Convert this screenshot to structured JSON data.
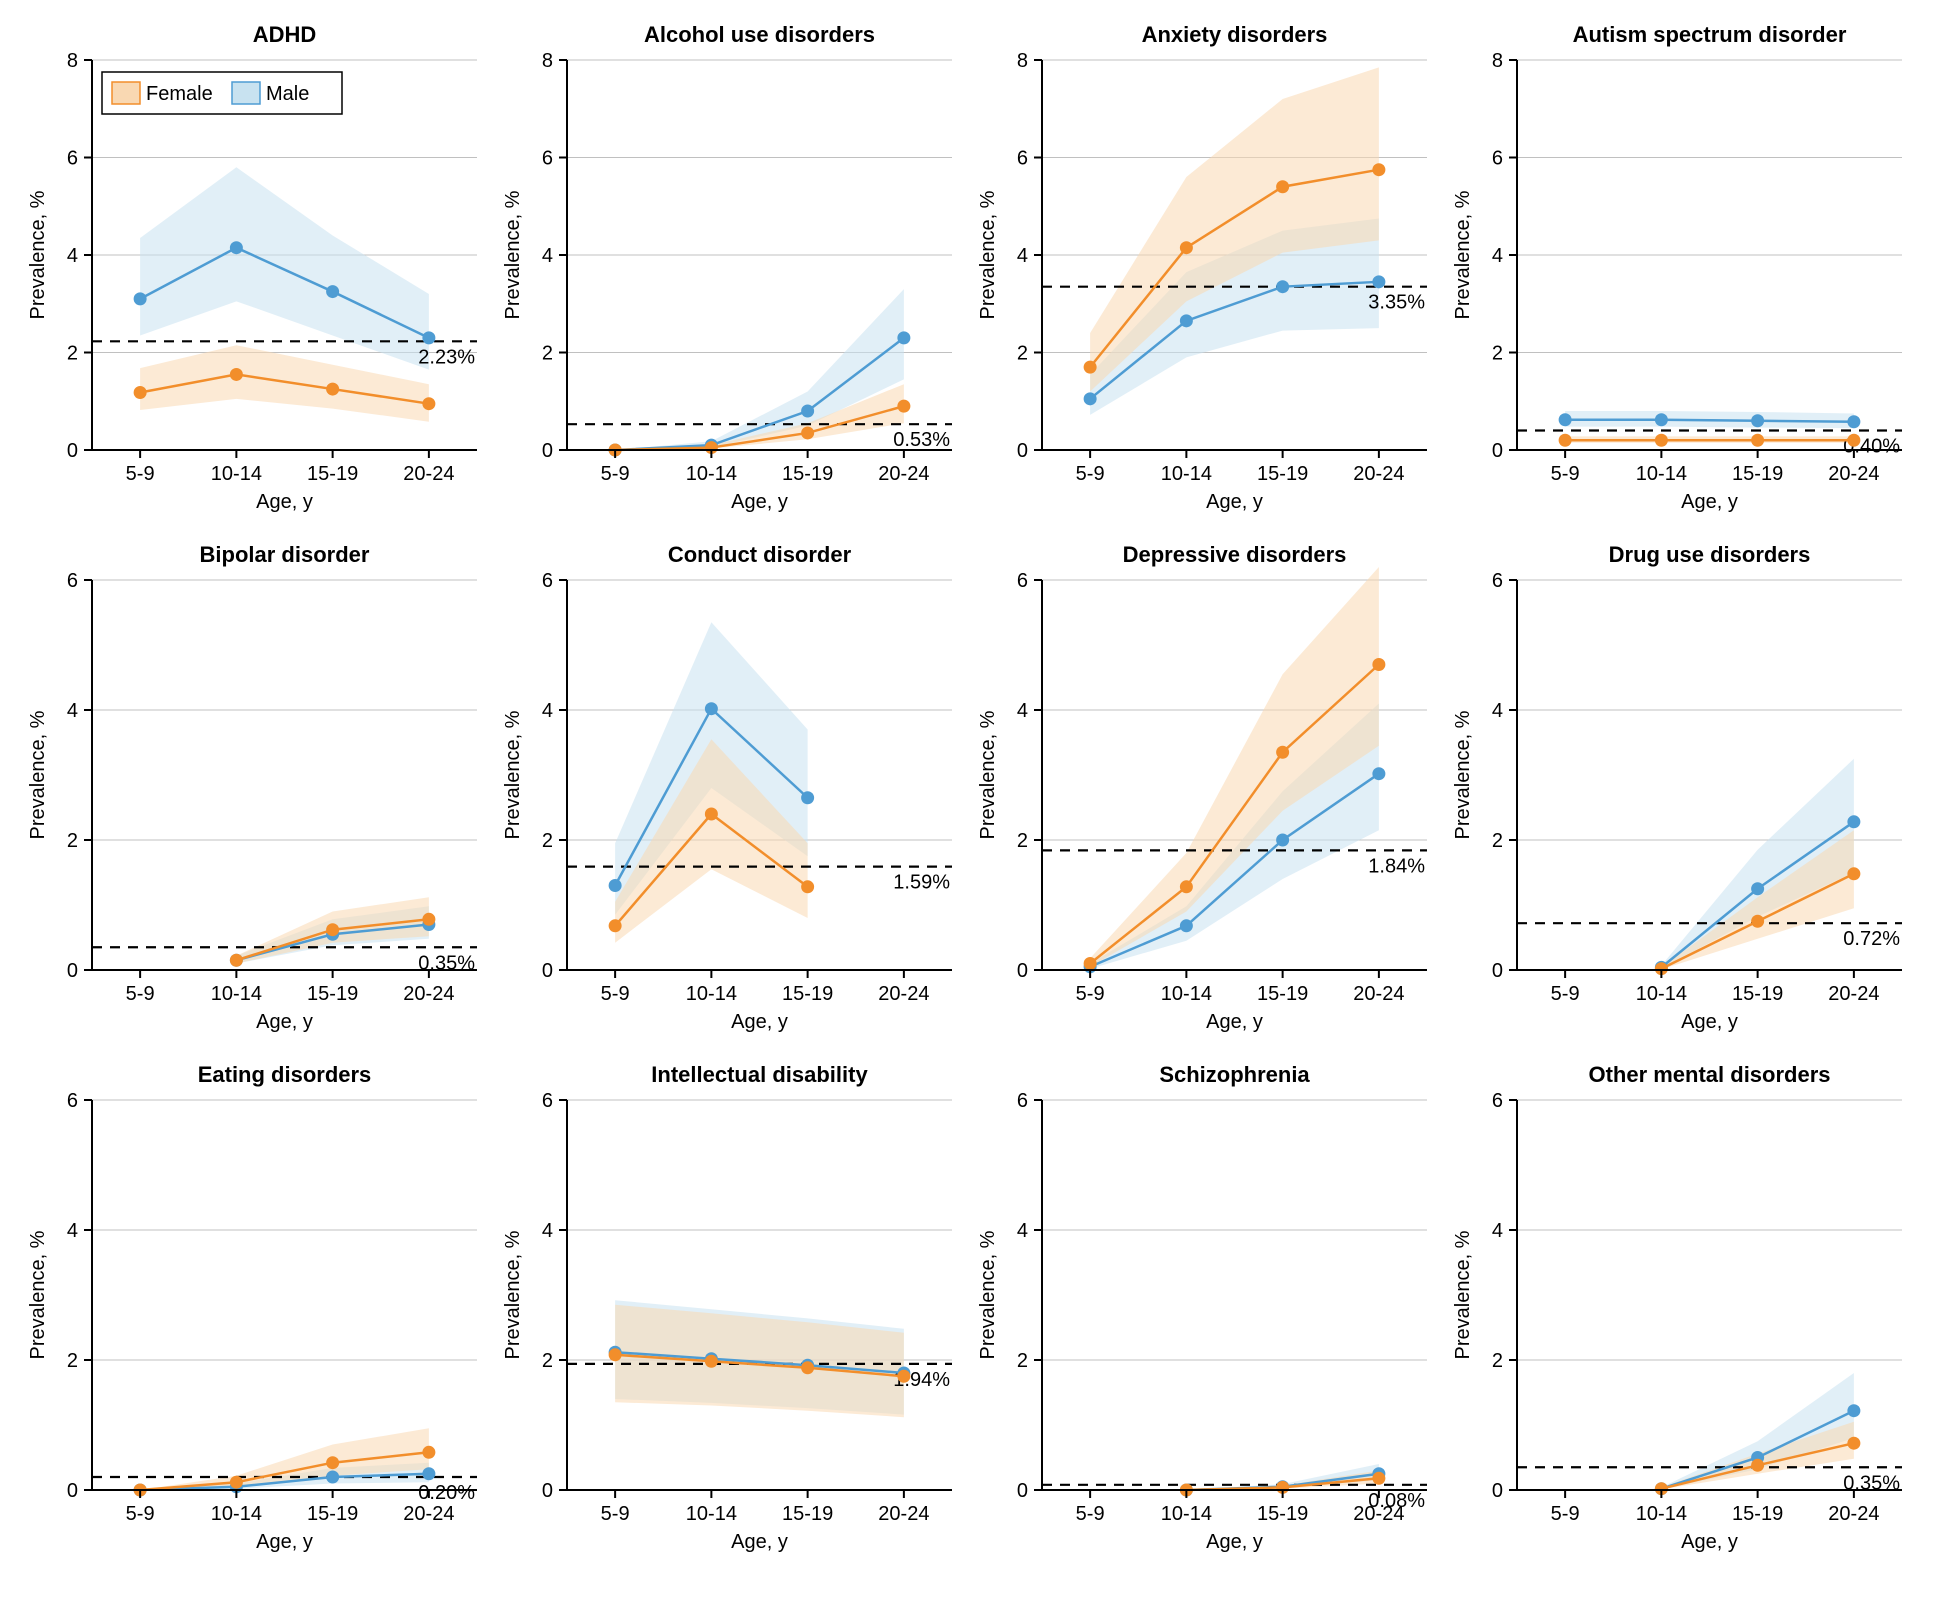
{
  "global": {
    "x_categories": [
      "5-9",
      "10-14",
      "15-19",
      "20-24"
    ],
    "x_label": "Age, y",
    "y_label": "Prevalence, %",
    "colors": {
      "female_line": "#f28e2b",
      "female_fill": "#f9d8b2",
      "male_line": "#4e9cd3",
      "male_fill": "#c8e2f0",
      "grid": "#c0c0c0",
      "axis": "#000000",
      "ref_line": "#000000",
      "background": "#ffffff"
    },
    "marker_radius": 6.5,
    "line_width": 2.5,
    "band_opacity": 0.55,
    "tick_len": 8,
    "legend": {
      "female": "Female",
      "male": "Male",
      "box_stroke": "#000000"
    }
  },
  "panels": [
    {
      "title": "ADHD",
      "y_max": 8,
      "y_step": 2,
      "ref_value": 2.23,
      "ref_label": "2.23%",
      "show_legend": true,
      "series": {
        "female": {
          "x": [
            0,
            1,
            2,
            3
          ],
          "y": [
            1.18,
            1.55,
            1.25,
            0.95
          ],
          "lo": [
            0.82,
            1.05,
            0.85,
            0.58
          ],
          "hi": [
            1.68,
            2.15,
            1.75,
            1.35
          ]
        },
        "male": {
          "x": [
            0,
            1,
            2,
            3
          ],
          "y": [
            3.1,
            4.15,
            3.25,
            2.3
          ],
          "lo": [
            2.35,
            3.05,
            2.35,
            1.65
          ],
          "hi": [
            4.35,
            5.8,
            4.4,
            3.2
          ]
        }
      }
    },
    {
      "title": "Alcohol use disorders",
      "y_max": 8,
      "y_step": 2,
      "ref_value": 0.53,
      "ref_label": "0.53%",
      "series": {
        "female": {
          "x": [
            0,
            1,
            2,
            3
          ],
          "y": [
            0.0,
            0.05,
            0.35,
            0.9
          ],
          "lo": [
            0.0,
            0.03,
            0.22,
            0.55
          ],
          "hi": [
            0.0,
            0.1,
            0.55,
            1.35
          ]
        },
        "male": {
          "x": [
            0,
            1,
            2,
            3
          ],
          "y": [
            0.0,
            0.1,
            0.8,
            2.3
          ],
          "lo": [
            0.0,
            0.05,
            0.5,
            1.45
          ],
          "hi": [
            0.0,
            0.18,
            1.2,
            3.3
          ]
        }
      }
    },
    {
      "title": "Anxiety disorders",
      "y_max": 8,
      "y_step": 2,
      "ref_value": 3.35,
      "ref_label": "3.35%",
      "series": {
        "female": {
          "x": [
            0,
            1,
            2,
            3
          ],
          "y": [
            1.7,
            4.15,
            5.4,
            5.75
          ],
          "lo": [
            1.2,
            3.05,
            4.05,
            4.3
          ],
          "hi": [
            2.4,
            5.6,
            7.2,
            7.85
          ]
        },
        "male": {
          "x": [
            0,
            1,
            2,
            3
          ],
          "y": [
            1.05,
            2.65,
            3.35,
            3.45
          ],
          "lo": [
            0.72,
            1.9,
            2.45,
            2.5
          ],
          "hi": [
            1.55,
            3.65,
            4.5,
            4.75
          ]
        }
      }
    },
    {
      "title": "Autism spectrum disorder",
      "y_max": 8,
      "y_step": 2,
      "ref_value": 0.4,
      "ref_label": "0.40%",
      "series": {
        "female": {
          "x": [
            0,
            1,
            2,
            3
          ],
          "y": [
            0.2,
            0.2,
            0.2,
            0.2
          ],
          "lo": [
            0.15,
            0.15,
            0.15,
            0.15
          ],
          "hi": [
            0.28,
            0.28,
            0.28,
            0.28
          ]
        },
        "male": {
          "x": [
            0,
            1,
            2,
            3
          ],
          "y": [
            0.62,
            0.62,
            0.6,
            0.58
          ],
          "lo": [
            0.48,
            0.48,
            0.46,
            0.45
          ],
          "hi": [
            0.8,
            0.8,
            0.78,
            0.75
          ]
        }
      }
    },
    {
      "title": "Bipolar disorder",
      "y_max": 6,
      "y_step": 2,
      "ref_value": 0.35,
      "ref_label": "0.35%",
      "series": {
        "female": {
          "x": [
            1,
            2,
            3
          ],
          "y": [
            0.15,
            0.62,
            0.78
          ],
          "lo": [
            0.1,
            0.42,
            0.52
          ],
          "hi": [
            0.22,
            0.9,
            1.12
          ]
        },
        "male": {
          "x": [
            1,
            2,
            3
          ],
          "y": [
            0.15,
            0.55,
            0.7
          ],
          "lo": [
            0.1,
            0.38,
            0.48
          ],
          "hi": [
            0.22,
            0.78,
            0.98
          ]
        }
      }
    },
    {
      "title": "Conduct disorder",
      "y_max": 6,
      "y_step": 2,
      "ref_value": 1.59,
      "ref_label": "1.59%",
      "series": {
        "female": {
          "x": [
            0,
            1,
            2
          ],
          "y": [
            0.68,
            2.4,
            1.28
          ],
          "lo": [
            0.42,
            1.55,
            0.8
          ],
          "hi": [
            1.05,
            3.55,
            1.95
          ]
        },
        "male": {
          "x": [
            0,
            1,
            2
          ],
          "y": [
            1.3,
            4.02,
            2.65
          ],
          "lo": [
            0.85,
            2.8,
            1.75
          ],
          "hi": [
            1.95,
            5.35,
            3.7
          ]
        }
      }
    },
    {
      "title": "Depressive disorders",
      "y_max": 6,
      "y_step": 2,
      "ref_value": 1.84,
      "ref_label": "1.84%",
      "series": {
        "female": {
          "x": [
            0,
            1,
            2,
            3
          ],
          "y": [
            0.1,
            1.28,
            3.35,
            4.7
          ],
          "lo": [
            0.05,
            0.9,
            2.45,
            3.45
          ],
          "hi": [
            0.18,
            1.8,
            4.55,
            6.2
          ]
        },
        "male": {
          "x": [
            0,
            1,
            2,
            3
          ],
          "y": [
            0.05,
            0.68,
            2.0,
            3.02
          ],
          "lo": [
            0.02,
            0.45,
            1.4,
            2.15
          ],
          "hi": [
            0.1,
            0.98,
            2.75,
            4.1
          ]
        }
      }
    },
    {
      "title": "Drug use disorders",
      "y_max": 6,
      "y_step": 2,
      "ref_value": 0.72,
      "ref_label": "0.72%",
      "series": {
        "female": {
          "x": [
            1,
            2,
            3
          ],
          "y": [
            0.02,
            0.75,
            1.48
          ],
          "lo": [
            0.01,
            0.48,
            0.95
          ],
          "hi": [
            0.04,
            1.12,
            2.15
          ]
        },
        "male": {
          "x": [
            1,
            2,
            3
          ],
          "y": [
            0.04,
            1.25,
            2.28
          ],
          "lo": [
            0.02,
            0.82,
            1.5
          ],
          "hi": [
            0.07,
            1.85,
            3.25
          ]
        }
      }
    },
    {
      "title": "Eating disorders",
      "y_max": 6,
      "y_step": 2,
      "ref_value": 0.2,
      "ref_label": "0.20%",
      "series": {
        "female": {
          "x": [
            0,
            1,
            2,
            3
          ],
          "y": [
            0.0,
            0.12,
            0.42,
            0.58
          ],
          "lo": [
            0.0,
            0.06,
            0.22,
            0.32
          ],
          "hi": [
            0.0,
            0.22,
            0.7,
            0.95
          ]
        },
        "male": {
          "x": [
            0,
            1,
            2,
            3
          ],
          "y": [
            0.0,
            0.05,
            0.2,
            0.25
          ],
          "lo": [
            0.0,
            0.02,
            0.1,
            0.12
          ],
          "hi": [
            0.0,
            0.1,
            0.34,
            0.42
          ]
        }
      }
    },
    {
      "title": "Intellectual disability",
      "y_max": 6,
      "y_step": 2,
      "ref_value": 1.94,
      "ref_label": "1.94%",
      "series": {
        "female": {
          "x": [
            0,
            1,
            2,
            3
          ],
          "y": [
            2.08,
            1.98,
            1.88,
            1.75
          ],
          "lo": [
            1.35,
            1.3,
            1.22,
            1.12
          ],
          "hi": [
            2.85,
            2.72,
            2.58,
            2.42
          ]
        },
        "male": {
          "x": [
            0,
            1,
            2,
            3
          ],
          "y": [
            2.12,
            2.02,
            1.92,
            1.8
          ],
          "lo": [
            1.4,
            1.34,
            1.26,
            1.16
          ],
          "hi": [
            2.92,
            2.78,
            2.64,
            2.48
          ]
        }
      }
    },
    {
      "title": "Schizophrenia",
      "y_max": 6,
      "y_step": 2,
      "ref_value": 0.08,
      "ref_label": "0.08%",
      "series": {
        "female": {
          "x": [
            1,
            2,
            3
          ],
          "y": [
            0.0,
            0.04,
            0.18
          ],
          "lo": [
            0.0,
            0.02,
            0.1
          ],
          "hi": [
            0.0,
            0.07,
            0.3
          ]
        },
        "male": {
          "x": [
            1,
            2,
            3
          ],
          "y": [
            0.0,
            0.05,
            0.25
          ],
          "lo": [
            0.0,
            0.03,
            0.15
          ],
          "hi": [
            0.0,
            0.09,
            0.4
          ]
        }
      }
    },
    {
      "title": "Other mental disorders",
      "y_max": 6,
      "y_step": 2,
      "ref_value": 0.35,
      "ref_label": "0.35%",
      "series": {
        "female": {
          "x": [
            1,
            2,
            3
          ],
          "y": [
            0.02,
            0.38,
            0.72
          ],
          "lo": [
            0.01,
            0.25,
            0.48
          ],
          "hi": [
            0.04,
            0.56,
            1.05
          ]
        },
        "male": {
          "x": [
            1,
            2,
            3
          ],
          "y": [
            0.02,
            0.5,
            1.22
          ],
          "lo": [
            0.01,
            0.32,
            0.8
          ],
          "hi": [
            0.04,
            0.75,
            1.8
          ]
        }
      }
    }
  ]
}
